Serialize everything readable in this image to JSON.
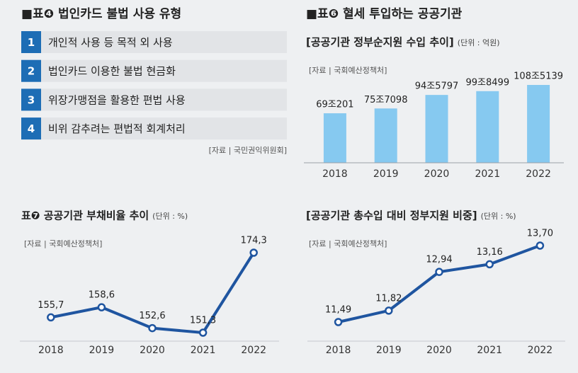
{
  "list_panel": {
    "title": "■표❹ 법인카드 불법 사용 유형",
    "items": [
      {
        "number": "1",
        "text": "개인적 사용 등 목적 외 사용"
      },
      {
        "number": "2",
        "text": "법인카드 이용한 불법 현금화"
      },
      {
        "number": "3",
        "text": "위장가맹점을 활용한 편법 사용"
      },
      {
        "number": "4",
        "text": "비위 감추려는 편법적 회계처리"
      }
    ],
    "source": "[자료 | 국민권익위원회]"
  },
  "section_header": "■표❻ 혈세 투입하는 공공기관",
  "chart_data": [
    {
      "type": "bar",
      "title": "[공공기관 정부순지원 수입 추이]",
      "unit": "(단위 : 억원)",
      "source": "[자료 | 국회예산정책처]",
      "categories": [
        "2018",
        "2019",
        "2020",
        "2021",
        "2022"
      ],
      "values": [
        690201,
        757098,
        945797,
        998499,
        1085139
      ],
      "value_labels": [
        "69조201",
        "75조7098",
        "94조5797",
        "99조8499",
        "108조5139"
      ],
      "color": "#86c9f0"
    },
    {
      "type": "line",
      "title": "표❼ 공공기관 부채비율 추이",
      "unit": "(단위 : %)",
      "source": "[자료 | 국회예산정책처]",
      "categories": [
        "2018",
        "2019",
        "2020",
        "2021",
        "2022"
      ],
      "values": [
        155.7,
        158.6,
        152.6,
        151.3,
        174.3
      ],
      "value_labels": [
        "155,7",
        "158,6",
        "152,6",
        "151,3",
        "174,3"
      ],
      "color": "#1f55a0"
    },
    {
      "type": "line",
      "title": "[공공기관 총수입 대비 정부지원 비중]",
      "unit": "(단위 : %)",
      "source": "[자료 | 국회예산정책처]",
      "categories": [
        "2018",
        "2019",
        "2020",
        "2021",
        "2022"
      ],
      "values": [
        11.49,
        11.82,
        12.94,
        13.16,
        13.7
      ],
      "value_labels": [
        "11,49",
        "11,82",
        "12,94",
        "13,16",
        "13,70"
      ],
      "color": "#1f55a0"
    }
  ]
}
